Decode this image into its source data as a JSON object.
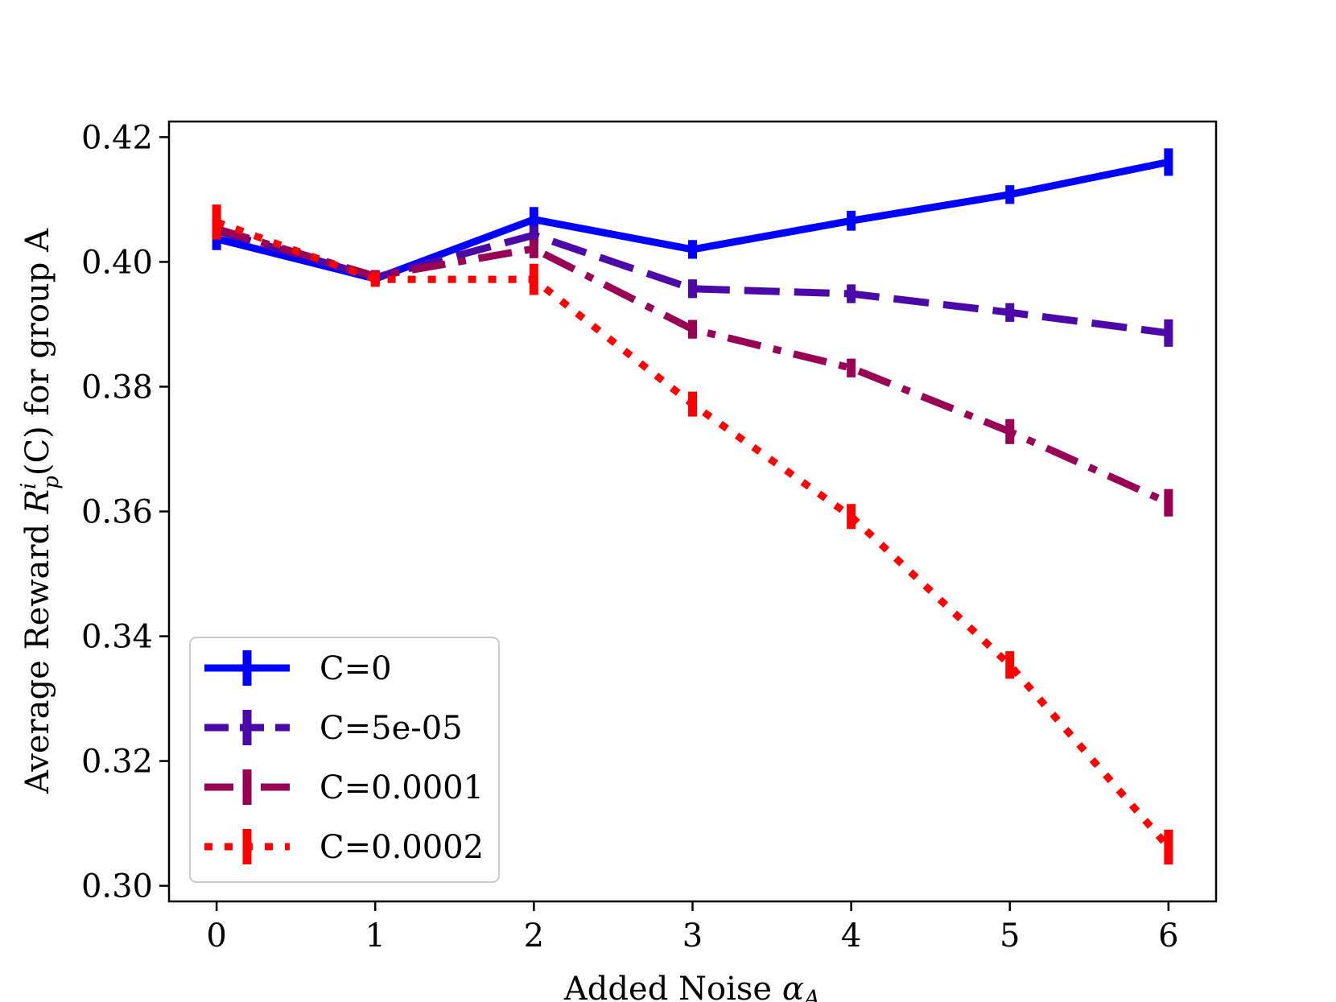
{
  "chart_data": {
    "type": "line",
    "title": "",
    "xlabel": "Added Noise α_A",
    "ylabel": "Average Reward R_p^i(C) for group A",
    "xlabel_parts": {
      "main": "Added Noise ",
      "symbol": "α",
      "sub": "A"
    },
    "ylabel_parts": {
      "main": "Average Reward ",
      "sym": "R",
      "sup": "i",
      "sub": "p",
      "paren": "(C)",
      "rest": " for group A"
    },
    "x": [
      0,
      1,
      2,
      3,
      4,
      5,
      6
    ],
    "xlim": [
      -0.3,
      6.3
    ],
    "ylim": [
      0.2975,
      0.4225
    ],
    "xticks": [
      0,
      1,
      2,
      3,
      4,
      5,
      6
    ],
    "xtick_labels": [
      "0",
      "1",
      "2",
      "3",
      "4",
      "5",
      "6"
    ],
    "yticks": [
      0.3,
      0.32,
      0.34,
      0.36,
      0.38,
      0.4,
      0.42
    ],
    "ytick_labels": [
      "0.30",
      "0.32",
      "0.34",
      "0.36",
      "0.38",
      "0.40",
      "0.42"
    ],
    "grid": false,
    "legend_position": "lower-left",
    "series": [
      {
        "name": "C=0",
        "color": "#0000ff",
        "style": "solid",
        "values": [
          0.4037,
          0.3973,
          0.4068,
          0.402,
          0.4066,
          0.4108,
          0.416
        ],
        "errors": [
          0.0018,
          0.001,
          0.002,
          0.0015,
          0.0016,
          0.0015,
          0.0022
        ]
      },
      {
        "name": "C=5e-05",
        "color": "#4b0aa8",
        "style": "dashed",
        "values": [
          0.405,
          0.3975,
          0.4043,
          0.3957,
          0.3949,
          0.3919,
          0.3886
        ],
        "errors": [
          0.0015,
          0.001,
          0.0015,
          0.0015,
          0.0015,
          0.0015,
          0.0022
        ]
      },
      {
        "name": "C=0.0001",
        "color": "#990055",
        "style": "dashdot",
        "values": [
          0.4053,
          0.3977,
          0.4021,
          0.3892,
          0.383,
          0.3728,
          0.3614
        ],
        "errors": [
          0.0015,
          0.001,
          0.0015,
          0.0015,
          0.0015,
          0.002,
          0.0022
        ]
      },
      {
        "name": "C=0.0002",
        "color": "#ff0000",
        "style": "dotted",
        "values": [
          0.4064,
          0.3972,
          0.3972,
          0.3772,
          0.3592,
          0.3354,
          0.3062
        ],
        "errors": [
          0.0028,
          0.0012,
          0.0025,
          0.002,
          0.002,
          0.0022,
          0.0028
        ]
      }
    ]
  }
}
